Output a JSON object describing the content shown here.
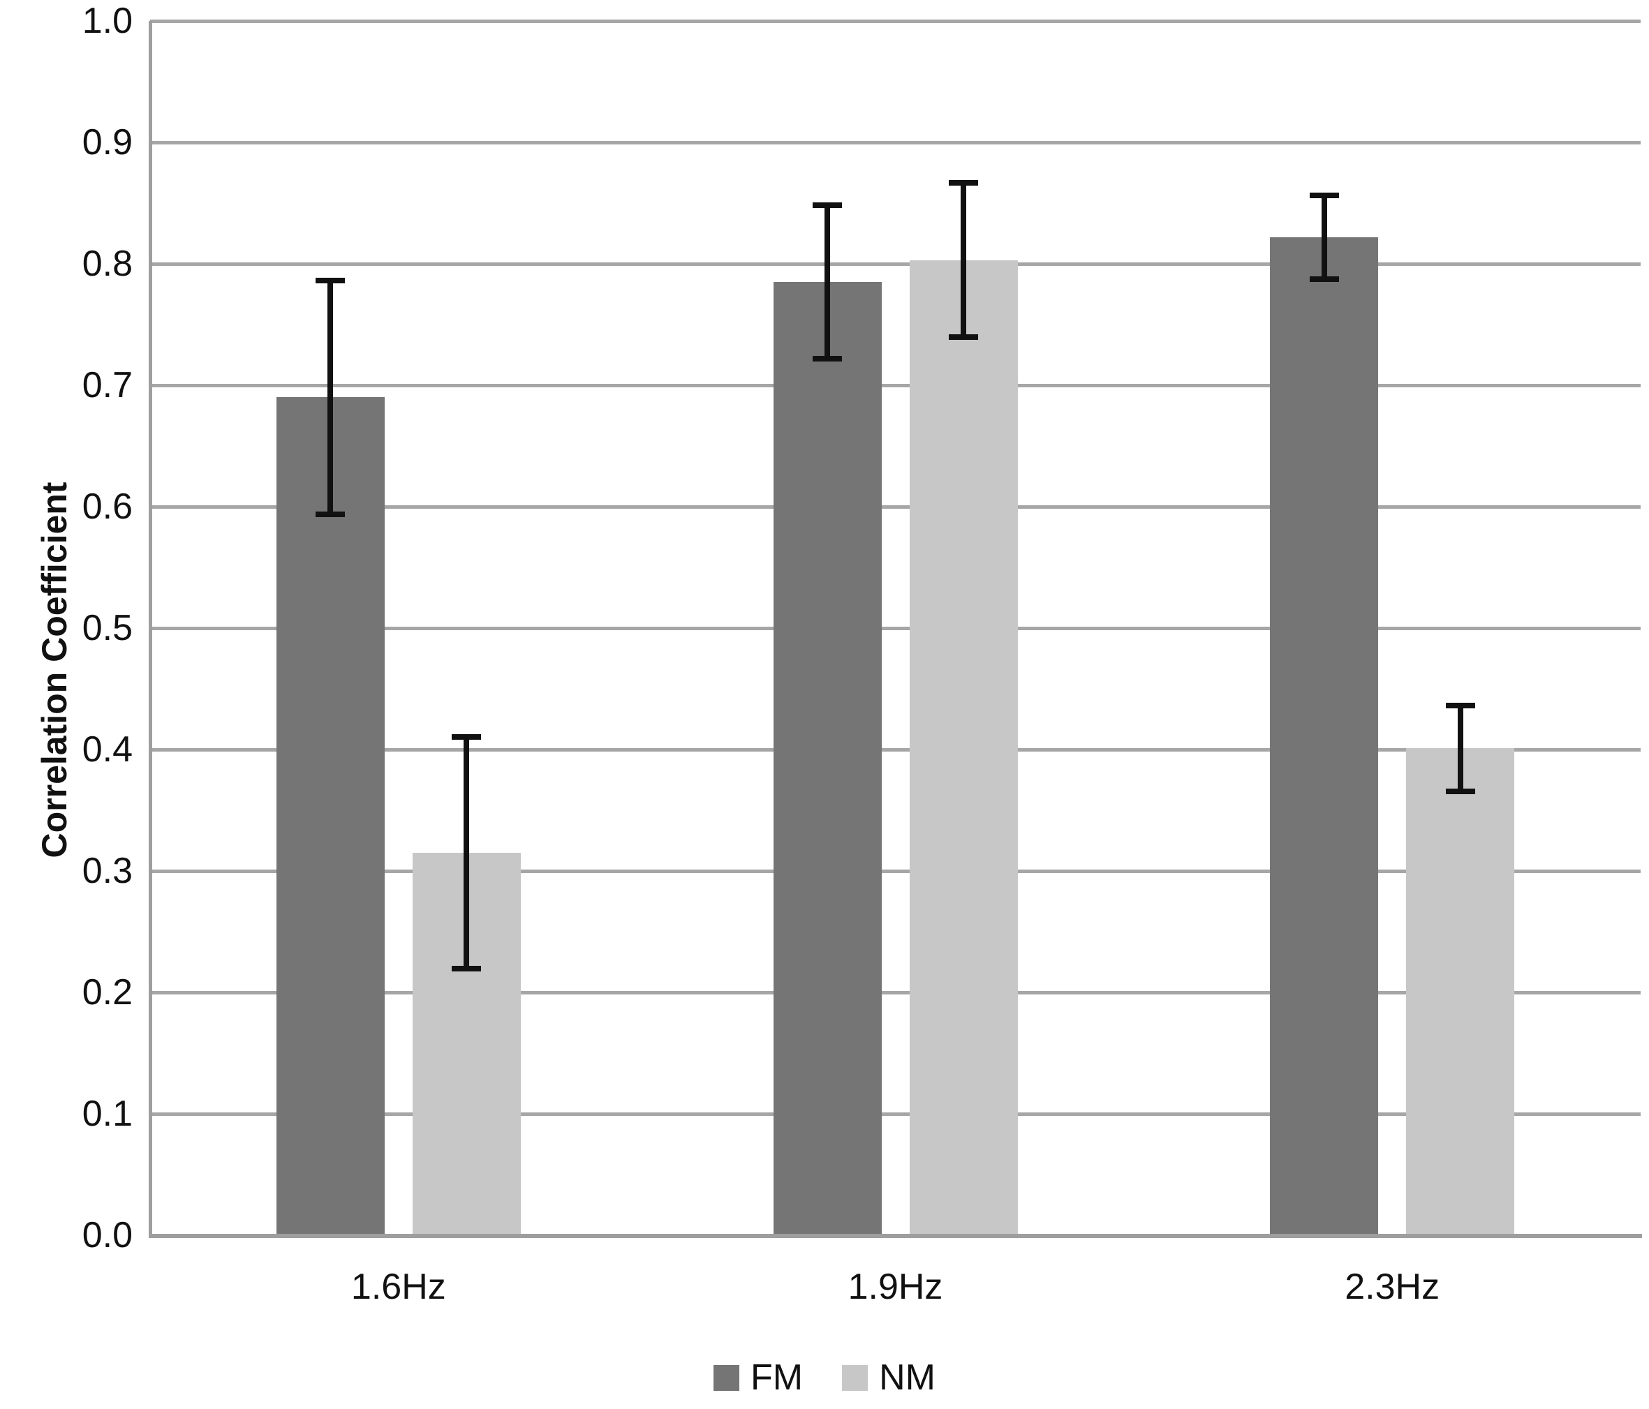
{
  "chart_data": {
    "type": "bar",
    "title": "",
    "xlabel": "",
    "ylabel": "Correlation Coefficient",
    "categories": [
      "1.6Hz",
      "1.9Hz",
      "2.3Hz"
    ],
    "series": [
      {
        "name": "FM",
        "color": "#757575",
        "values": [
          0.69,
          0.785,
          0.822
        ],
        "error_bars": [
          0.097,
          0.064,
          0.035
        ]
      },
      {
        "name": "NM",
        "color": "#c7c7c7",
        "values": [
          0.315,
          0.803,
          0.401
        ],
        "error_bars": [
          0.096,
          0.064,
          0.036
        ]
      }
    ],
    "ylim": [
      0.0,
      1.0
    ],
    "yticks": [
      "0.0",
      "0.1",
      "0.2",
      "0.3",
      "0.4",
      "0.5",
      "0.6",
      "0.7",
      "0.8",
      "0.9",
      "1.0"
    ],
    "grid": "horizontal",
    "gridline_color": "#a6a6a6",
    "axis_color": "#9e9e9e",
    "error_bar_color": "#111111",
    "legend_position": "bottom-center",
    "legend_entries": [
      "FM",
      "NM"
    ]
  }
}
